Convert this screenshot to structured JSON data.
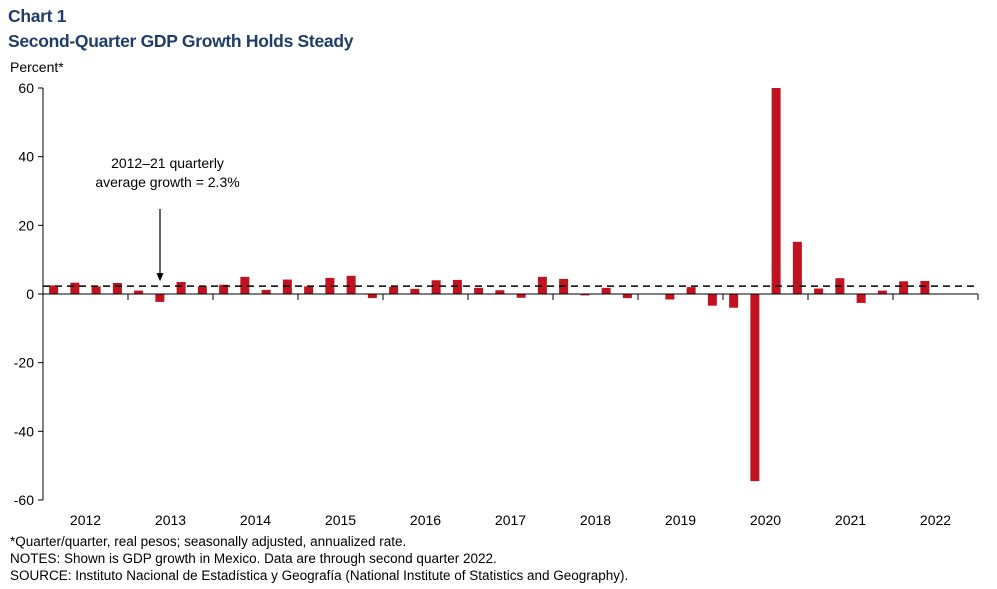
{
  "header": {
    "chart_number": "Chart 1",
    "title": "Second-Quarter GDP Growth Holds Steady"
  },
  "footer": {
    "note1": "*Quarter/quarter, real pesos; seasonally adjusted, annualized rate.",
    "note2": "NOTES: Shown is GDP growth in Mexico. Data are through second quarter 2022.",
    "note3": "SOURCE: Instituto Nacional de Estadística y Geografía (National Institute of Statistics and Geography)."
  },
  "colors": {
    "bar": "#c0121f",
    "title": "#1f3d6b"
  },
  "chart_data": {
    "type": "bar",
    "title": "Second-Quarter GDP Growth Holds Steady",
    "ylabel": "Percent*",
    "ylim": [
      -60,
      60
    ],
    "yticks": [
      60,
      40,
      20,
      0,
      -20,
      -40,
      -60
    ],
    "ytick_labels": [
      "60",
      "40",
      "20",
      "0",
      "-20",
      "-40",
      "-60"
    ],
    "year_labels": [
      "2012",
      "2013",
      "2014",
      "2015",
      "2016",
      "2017",
      "2018",
      "2019",
      "2020",
      "2021",
      "2022"
    ],
    "categories": [
      "2012Q1",
      "2012Q2",
      "2012Q3",
      "2012Q4",
      "2013Q1",
      "2013Q2",
      "2013Q3",
      "2013Q4",
      "2014Q1",
      "2014Q2",
      "2014Q3",
      "2014Q4",
      "2015Q1",
      "2015Q2",
      "2015Q3",
      "2015Q4",
      "2016Q1",
      "2016Q2",
      "2016Q3",
      "2016Q4",
      "2017Q1",
      "2017Q2",
      "2017Q3",
      "2017Q4",
      "2018Q1",
      "2018Q2",
      "2018Q3",
      "2018Q4",
      "2019Q1",
      "2019Q2",
      "2019Q3",
      "2019Q4",
      "2020Q1",
      "2020Q2",
      "2020Q3",
      "2020Q4",
      "2021Q1",
      "2021Q2",
      "2021Q3",
      "2021Q4",
      "2022Q1",
      "2022Q2"
    ],
    "values": [
      2.5,
      3.3,
      2.2,
      3.2,
      1.0,
      -2.3,
      3.5,
      2.2,
      2.7,
      5.0,
      1.2,
      4.2,
      2.2,
      4.7,
      5.3,
      -1.2,
      2.1,
      1.5,
      4.0,
      4.1,
      1.8,
      1.1,
      -1.1,
      5.0,
      4.4,
      -0.4,
      1.8,
      -1.2,
      0.0,
      -1.6,
      2.0,
      -3.4,
      -4.0,
      -54.5,
      60.0,
      15.2,
      1.6,
      4.6,
      -2.6,
      1.0,
      3.7,
      3.8
    ],
    "reference_line": {
      "value": 2.3,
      "style": "dashed"
    },
    "annotation": {
      "line1": "2012–21 quarterly",
      "line2": "average growth = 2.3%"
    }
  }
}
